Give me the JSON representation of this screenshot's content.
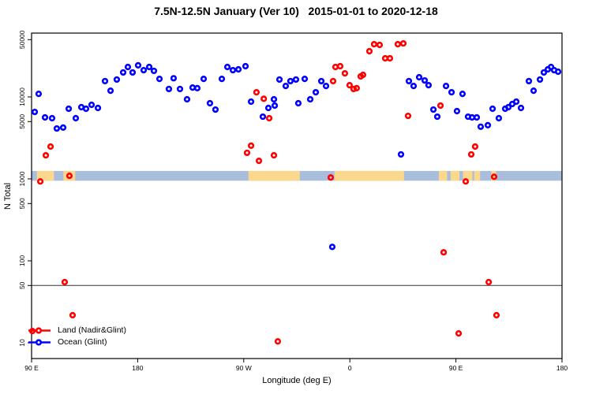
{
  "chart_data": {
    "type": "scatter",
    "title": "7.5N-12.5N January (Ver 10)   2015-01-01 to 2020-12-18",
    "xlabel": "Longitude (deg E)",
    "ylabel": "N Total",
    "x_axis_range_deg": [
      90,
      540
    ],
    "x_ticks": [
      {
        "deg": 90,
        "label": "90 E"
      },
      {
        "deg": 180,
        "label": "180"
      },
      {
        "deg": 270,
        "label": "90 W"
      },
      {
        "deg": 360,
        "label": "0"
      },
      {
        "deg": 450,
        "label": "90 E"
      },
      {
        "deg": 540,
        "label": "180"
      }
    ],
    "y_scale": "log10",
    "y_ticks": [
      10,
      50,
      100,
      500,
      1000,
      5000,
      10000,
      50000
    ],
    "reference_line_n": 50,
    "surface_band": {
      "n_low": 950,
      "n_high": 1250,
      "ocean_color": "#a9bedd",
      "land_color": "#fbd88c",
      "land_patches_deg": [
        [
          94.5,
          109
        ],
        [
          117,
          127
        ],
        [
          274,
          317.5
        ],
        [
          347,
          406
        ],
        [
          435.5,
          442.5
        ],
        [
          445.5,
          453
        ],
        [
          456,
          464
        ],
        [
          465.5,
          470.5
        ],
        [
          480,
          484
        ]
      ]
    },
    "series": [
      {
        "name": "Ocean (Glint)",
        "color": "#0000ff",
        "points": [
          [
            92.7,
            6560
          ],
          [
            96,
            10900
          ],
          [
            101.4,
            5620
          ],
          [
            107.4,
            5500
          ],
          [
            111.4,
            4120
          ],
          [
            116.8,
            4230
          ],
          [
            121.5,
            7180
          ],
          [
            127.5,
            5500
          ],
          [
            132.2,
            7500
          ],
          [
            136.2,
            7180
          ],
          [
            140.9,
            8010
          ],
          [
            146.3,
            7330
          ],
          [
            152.3,
            15600
          ],
          [
            157,
            11900
          ],
          [
            162.3,
            16300
          ],
          [
            167.7,
            19900
          ],
          [
            171.7,
            23200
          ],
          [
            175.7,
            19900
          ],
          [
            180.4,
            24300
          ],
          [
            185.1,
            21200
          ],
          [
            189.8,
            23200
          ],
          [
            193.8,
            20800
          ],
          [
            198.5,
            16600
          ],
          [
            206.5,
            12500
          ],
          [
            210.5,
            16900
          ],
          [
            215.9,
            12500
          ],
          [
            221.9,
            9350
          ],
          [
            226.6,
            13000
          ],
          [
            230.6,
            12800
          ],
          [
            236,
            16600
          ],
          [
            241.3,
            8380
          ],
          [
            246,
            7010
          ],
          [
            251.4,
            16600
          ],
          [
            256.1,
            23200
          ],
          [
            260.8,
            21200
          ],
          [
            265.5,
            21700
          ],
          [
            271.5,
            23700
          ],
          [
            276.2,
            8750
          ],
          [
            286.2,
            5740
          ],
          [
            290.9,
            7330
          ],
          [
            295.6,
            9350
          ],
          [
            296.3,
            7840
          ],
          [
            300.3,
            16300
          ],
          [
            305.6,
            13600
          ],
          [
            309.6,
            15600
          ],
          [
            314.3,
            16300
          ],
          [
            316.3,
            8380
          ],
          [
            321.7,
            16600
          ],
          [
            326.4,
            9350
          ],
          [
            331.1,
            11400
          ],
          [
            335.8,
            15600
          ],
          [
            339.8,
            13600
          ],
          [
            345.1,
            148
          ],
          [
            403.4,
            1990
          ],
          [
            410.1,
            15600
          ],
          [
            414.1,
            13600
          ],
          [
            418.8,
            17400
          ],
          [
            423.5,
            15900
          ],
          [
            426.8,
            13900
          ],
          [
            430.9,
            7010
          ],
          [
            434.2,
            5740
          ],
          [
            441.6,
            13600
          ],
          [
            446.3,
            11400
          ],
          [
            450.9,
            6710
          ],
          [
            455.6,
            10900
          ],
          [
            460.3,
            5740
          ],
          [
            463.7,
            5620
          ],
          [
            467.7,
            5620
          ],
          [
            471,
            4330
          ],
          [
            477.1,
            4520
          ],
          [
            481.1,
            7180
          ],
          [
            486.4,
            5500
          ],
          [
            491.8,
            7180
          ],
          [
            494.5,
            7500
          ],
          [
            497.8,
            8190
          ],
          [
            501.2,
            8750
          ],
          [
            505.2,
            7330
          ],
          [
            511.9,
            15600
          ],
          [
            515.9,
            11900
          ],
          [
            521.3,
            16300
          ],
          [
            524.6,
            19900
          ],
          [
            528,
            21700
          ],
          [
            530.7,
            23200
          ],
          [
            533.3,
            21200
          ],
          [
            536.7,
            20300
          ]
        ]
      },
      {
        "name": "Land (Nadir&Glint)",
        "color": "#ff0000",
        "points": [
          [
            90.7,
            13.9
          ],
          [
            97.4,
            930
          ],
          [
            102.1,
            1940
          ],
          [
            106.1,
            2480
          ],
          [
            118.1,
            55
          ],
          [
            122.1,
            1090
          ],
          [
            124.8,
            21.7
          ],
          [
            272.8,
            2080
          ],
          [
            276.2,
            2540
          ],
          [
            280.8,
            11400
          ],
          [
            282.9,
            1660
          ],
          [
            287,
            9500
          ],
          [
            291.6,
            5500
          ],
          [
            295.6,
            1940
          ],
          [
            298.9,
            10.4
          ],
          [
            343.8,
            1040
          ],
          [
            345.8,
            15600
          ],
          [
            347.8,
            23200
          ],
          [
            351.8,
            23700
          ],
          [
            355.8,
            19400
          ],
          [
            359.8,
            13900
          ],
          [
            363.2,
            12500
          ],
          [
            365.8,
            12800
          ],
          [
            369.2,
            17800
          ],
          [
            371.2,
            18600
          ],
          [
            376.6,
            36100
          ],
          [
            380.6,
            44000
          ],
          [
            385.3,
            43100
          ],
          [
            390,
            29600
          ],
          [
            394,
            29600
          ],
          [
            400.7,
            44000
          ],
          [
            405.4,
            45000
          ],
          [
            409.4,
            5870
          ],
          [
            436.9,
            7840
          ],
          [
            439.6,
            127
          ],
          [
            452.3,
            13
          ],
          [
            458.3,
            930
          ],
          [
            463,
            1990
          ],
          [
            466.3,
            2480
          ],
          [
            477.8,
            55
          ],
          [
            482.4,
            1060
          ],
          [
            484.4,
            21.7
          ]
        ]
      }
    ],
    "legend_position": "bottom-left-inside"
  }
}
